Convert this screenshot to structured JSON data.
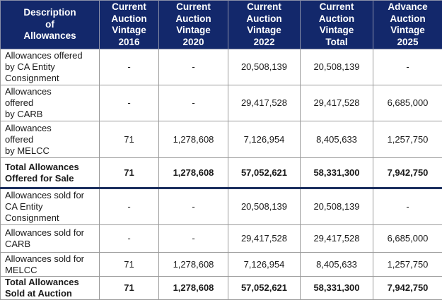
{
  "table": {
    "headers": [
      "Description\nof\nAllowances",
      "Current\nAuction\nVintage\n2016",
      "Current\nAuction\nVintage\n2020",
      "Current\nAuction\nVintage\n2022",
      "Current\nAuction\nVintage\nTotal",
      "Advance\nAuction\nVintage\n2025"
    ],
    "rows": [
      {
        "cells": [
          "Allowances offered\nby CA Entity\nConsignment",
          "-",
          "-",
          "20,508,139",
          "20,508,139",
          "-"
        ]
      },
      {
        "cells": [
          "Allowances\noffered\nby CARB",
          "-",
          "-",
          "29,417,528",
          "29,417,528",
          "6,685,000"
        ]
      },
      {
        "cells": [
          "Allowances\noffered\nby MELCC",
          "71",
          "1,278,608",
          "7,126,954",
          "8,405,633",
          "1,257,750"
        ]
      },
      {
        "cells": [
          "Total Allowances\nOffered for Sale",
          "71",
          "1,278,608",
          "57,052,621",
          "58,331,300",
          "7,942,750"
        ]
      },
      {
        "cells": [
          "Allowances sold for\nCA Entity\nConsignment",
          "-",
          "-",
          "20,508,139",
          "20,508,139",
          "-"
        ]
      },
      {
        "cells": [
          "Allowances sold for\nCARB",
          "-",
          "-",
          "29,417,528",
          "29,417,528",
          "6,685,000"
        ]
      },
      {
        "cells": [
          "Allowances sold for\nMELCC",
          "71",
          "1,278,608",
          "7,126,954",
          "8,405,633",
          "1,257,750"
        ]
      },
      {
        "cells": [
          "Total Allowances\nSold at Auction",
          "71",
          "1,278,608",
          "57,052,621",
          "58,331,300",
          "7,942,750"
        ]
      }
    ]
  },
  "colors": {
    "header_bg": "#13286b",
    "header_text": "#ffffff",
    "separator": "#1a2e5e"
  }
}
